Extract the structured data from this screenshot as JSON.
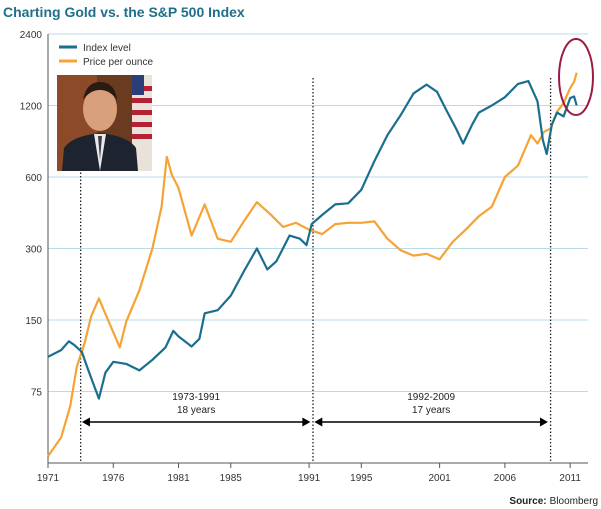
{
  "chart_data": {
    "type": "line",
    "title": "Charting Gold vs. the S&P 500 Index",
    "y_scale": "log",
    "ylim": [
      37.5,
      2400
    ],
    "xlim": [
      1971.0,
      2011.6
    ],
    "y_ticks": [
      75,
      150,
      300,
      600,
      1200,
      2400
    ],
    "x_ticks": [
      1971,
      1976,
      1981,
      1985,
      1991,
      1995,
      2001,
      2006,
      2011
    ],
    "legend": {
      "position": "top-left"
    },
    "series": [
      {
        "name": "Index level",
        "color": "#1a6e8e",
        "points": [
          [
            1971.0,
            105
          ],
          [
            1972.0,
            112
          ],
          [
            1972.6,
            122
          ],
          [
            1973.0,
            118
          ],
          [
            1973.6,
            110
          ],
          [
            1974.0,
            95
          ],
          [
            1974.5,
            80
          ],
          [
            1974.9,
            70
          ],
          [
            1975.4,
            90
          ],
          [
            1976.0,
            100
          ],
          [
            1977.0,
            98
          ],
          [
            1978.0,
            92
          ],
          [
            1979.0,
            102
          ],
          [
            1980.0,
            115
          ],
          [
            1980.6,
            135
          ],
          [
            1981.0,
            128
          ],
          [
            1982.0,
            116
          ],
          [
            1982.6,
            125
          ],
          [
            1983.0,
            160
          ],
          [
            1984.0,
            165
          ],
          [
            1985.0,
            190
          ],
          [
            1986.0,
            240
          ],
          [
            1987.0,
            300
          ],
          [
            1987.8,
            245
          ],
          [
            1988.5,
            265
          ],
          [
            1989.5,
            340
          ],
          [
            1990.3,
            330
          ],
          [
            1990.8,
            310
          ],
          [
            1991.2,
            380
          ],
          [
            1992.0,
            415
          ],
          [
            1993.0,
            460
          ],
          [
            1994.0,
            465
          ],
          [
            1995.0,
            530
          ],
          [
            1996.0,
            700
          ],
          [
            1997.0,
            900
          ],
          [
            1998.0,
            1090
          ],
          [
            1999.0,
            1350
          ],
          [
            2000.0,
            1470
          ],
          [
            2000.8,
            1370
          ],
          [
            2001.5,
            1150
          ],
          [
            2002.3,
            950
          ],
          [
            2002.8,
            830
          ],
          [
            2003.5,
            1000
          ],
          [
            2004.0,
            1120
          ],
          [
            2005.0,
            1200
          ],
          [
            2006.0,
            1300
          ],
          [
            2007.0,
            1480
          ],
          [
            2007.8,
            1520
          ],
          [
            2008.5,
            1250
          ],
          [
            2008.9,
            860
          ],
          [
            2009.2,
            750
          ],
          [
            2009.6,
            1000
          ],
          [
            2010.0,
            1120
          ],
          [
            2010.5,
            1080
          ],
          [
            2011.0,
            1290
          ],
          [
            2011.3,
            1310
          ],
          [
            2011.5,
            1200
          ]
        ]
      },
      {
        "name": "Price per ounce",
        "color": "#f5a335",
        "points": [
          [
            1971.0,
            40
          ],
          [
            1972.0,
            48
          ],
          [
            1972.7,
            65
          ],
          [
            1973.2,
            95
          ],
          [
            1973.8,
            120
          ],
          [
            1974.3,
            155
          ],
          [
            1974.9,
            185
          ],
          [
            1975.6,
            150
          ],
          [
            1976.5,
            115
          ],
          [
            1977.0,
            148
          ],
          [
            1978.0,
            200
          ],
          [
            1979.0,
            300
          ],
          [
            1979.7,
            450
          ],
          [
            1980.1,
            730
          ],
          [
            1980.5,
            610
          ],
          [
            1981.0,
            540
          ],
          [
            1982.0,
            340
          ],
          [
            1983.0,
            460
          ],
          [
            1984.0,
            330
          ],
          [
            1985.0,
            320
          ],
          [
            1986.0,
            390
          ],
          [
            1987.0,
            470
          ],
          [
            1988.0,
            420
          ],
          [
            1989.0,
            370
          ],
          [
            1990.0,
            385
          ],
          [
            1991.0,
            360
          ],
          [
            1992.0,
            345
          ],
          [
            1993.0,
            380
          ],
          [
            1994.0,
            385
          ],
          [
            1995.0,
            385
          ],
          [
            1996.0,
            390
          ],
          [
            1997.0,
            330
          ],
          [
            1998.0,
            295
          ],
          [
            1999.0,
            280
          ],
          [
            2000.0,
            285
          ],
          [
            2001.0,
            270
          ],
          [
            2002.0,
            320
          ],
          [
            2003.0,
            360
          ],
          [
            2004.0,
            410
          ],
          [
            2005.0,
            450
          ],
          [
            2006.0,
            600
          ],
          [
            2007.0,
            670
          ],
          [
            2008.0,
            900
          ],
          [
            2008.5,
            830
          ],
          [
            2009.0,
            930
          ],
          [
            2009.5,
            960
          ],
          [
            2010.0,
            1130
          ],
          [
            2010.5,
            1230
          ],
          [
            2011.0,
            1420
          ],
          [
            2011.3,
            1510
          ],
          [
            2011.5,
            1650
          ]
        ]
      }
    ],
    "annotations": [
      {
        "period": "1973-1991",
        "duration": "18 years",
        "from": 1973.6,
        "to": 1991.1
      },
      {
        "period": "1992-2009",
        "duration": "17 years",
        "from": 1991.4,
        "to": 2009.3
      }
    ],
    "vlines": [
      1973.5,
      1991.3,
      2009.5
    ],
    "source_label": "Source:",
    "source_value": "Bloomberg"
  }
}
